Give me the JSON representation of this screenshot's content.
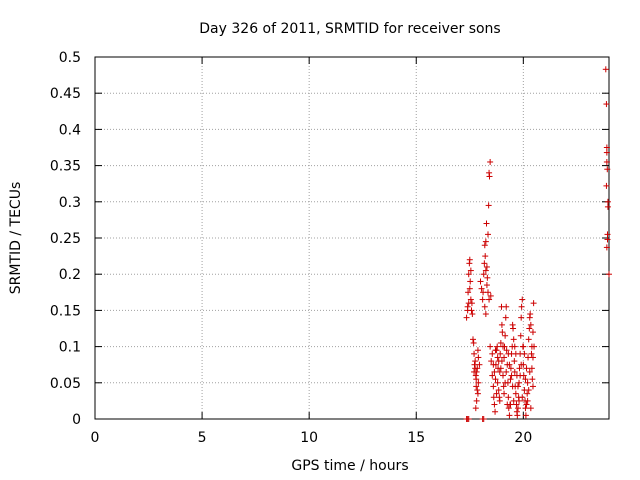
{
  "chart_data": {
    "type": "scatter",
    "title": "Day 326 of 2011, SRMTID for receiver sons",
    "xlabel": "GPS time / hours",
    "ylabel": "SRMTID / TECUs",
    "xlim": [
      0,
      24
    ],
    "ylim": [
      0,
      0.5
    ],
    "grid": true,
    "x_ticks": [
      0,
      5,
      10,
      15,
      20
    ],
    "y_ticks": [
      0,
      0.05,
      0.1,
      0.15,
      0.2,
      0.25,
      0.3,
      0.35,
      0.4,
      0.45,
      0.5
    ],
    "x_tick_labels": [
      "0",
      "5",
      "10",
      "15",
      "20"
    ],
    "y_tick_labels": [
      "0",
      "0.05",
      "0.1",
      "0.15",
      "0.2",
      "0.25",
      "0.3",
      "0.35",
      "0.4",
      "0.45",
      "0.5"
    ],
    "marker": "plus",
    "color": "#cc0000",
    "series": [
      {
        "name": "SRMTID",
        "points": [
          [
            17.35,
            0.0
          ],
          [
            17.4,
            0.0
          ],
          [
            17.45,
            0.0
          ],
          [
            18.1,
            0.0
          ],
          [
            18.15,
            0.0
          ],
          [
            17.35,
            0.14
          ],
          [
            17.4,
            0.155
          ],
          [
            17.42,
            0.175
          ],
          [
            17.45,
            0.2
          ],
          [
            17.48,
            0.215
          ],
          [
            17.5,
            0.22
          ],
          [
            17.52,
            0.19
          ],
          [
            17.55,
            0.165
          ],
          [
            17.58,
            0.15
          ],
          [
            17.6,
            0.16
          ],
          [
            17.62,
            0.145
          ],
          [
            17.4,
            0.15
          ],
          [
            17.45,
            0.16
          ],
          [
            17.5,
            0.18
          ],
          [
            17.55,
            0.205
          ],
          [
            17.65,
            0.11
          ],
          [
            17.68,
            0.105
          ],
          [
            17.7,
            0.09
          ],
          [
            17.72,
            0.075
          ],
          [
            17.75,
            0.07
          ],
          [
            17.78,
            0.06
          ],
          [
            17.8,
            0.055
          ],
          [
            17.82,
            0.065
          ],
          [
            17.85,
            0.04
          ],
          [
            17.88,
            0.035
          ],
          [
            17.9,
            0.05
          ],
          [
            17.7,
            0.065
          ],
          [
            17.75,
            0.08
          ],
          [
            17.8,
            0.045
          ],
          [
            17.85,
            0.07
          ],
          [
            17.9,
            0.085
          ],
          [
            17.95,
            0.075
          ],
          [
            17.78,
            0.015
          ],
          [
            17.82,
            0.025
          ],
          [
            17.88,
            0.095
          ],
          [
            18.0,
            0.19
          ],
          [
            18.05,
            0.18
          ],
          [
            18.1,
            0.165
          ],
          [
            18.12,
            0.175
          ],
          [
            18.15,
            0.2
          ],
          [
            18.18,
            0.215
          ],
          [
            18.2,
            0.24
          ],
          [
            18.22,
            0.225
          ],
          [
            18.25,
            0.245
          ],
          [
            18.28,
            0.27
          ],
          [
            18.3,
            0.21
          ],
          [
            18.32,
            0.195
          ],
          [
            18.35,
            0.255
          ],
          [
            18.38,
            0.295
          ],
          [
            18.4,
            0.34
          ],
          [
            18.42,
            0.335
          ],
          [
            18.45,
            0.355
          ],
          [
            18.25,
            0.205
          ],
          [
            18.3,
            0.185
          ],
          [
            18.35,
            0.175
          ],
          [
            18.4,
            0.165
          ],
          [
            18.2,
            0.155
          ],
          [
            18.25,
            0.145
          ],
          [
            18.48,
            0.17
          ],
          [
            18.45,
            0.1
          ],
          [
            18.5,
            0.08
          ],
          [
            18.55,
            0.06
          ],
          [
            18.6,
            0.045
          ],
          [
            18.62,
            0.03
          ],
          [
            18.65,
            0.02
          ],
          [
            18.68,
            0.01
          ],
          [
            18.7,
            0.055
          ],
          [
            18.72,
            0.075
          ],
          [
            18.75,
            0.095
          ],
          [
            18.78,
            0.1
          ],
          [
            18.8,
            0.085
          ],
          [
            18.82,
            0.07
          ],
          [
            18.85,
            0.04
          ],
          [
            18.88,
            0.03
          ],
          [
            18.9,
            0.065
          ],
          [
            18.92,
            0.09
          ],
          [
            18.95,
            0.105
          ],
          [
            18.98,
            0.155
          ],
          [
            19.0,
            0.13
          ],
          [
            19.02,
            0.12
          ],
          [
            19.05,
            0.06
          ],
          [
            19.08,
            0.045
          ],
          [
            19.1,
            0.085
          ],
          [
            19.12,
            0.1
          ],
          [
            19.15,
            0.115
          ],
          [
            19.18,
            0.14
          ],
          [
            19.2,
            0.155
          ],
          [
            19.22,
            0.095
          ],
          [
            19.25,
            0.075
          ],
          [
            19.28,
            0.05
          ],
          [
            19.3,
            0.03
          ],
          [
            19.32,
            0.015
          ],
          [
            19.35,
            0.005
          ],
          [
            19.38,
            0.02
          ],
          [
            19.4,
            0.055
          ],
          [
            19.42,
            0.07
          ],
          [
            19.45,
            0.09
          ],
          [
            19.48,
            0.1
          ],
          [
            19.5,
            0.13
          ],
          [
            19.52,
            0.125
          ],
          [
            19.55,
            0.11
          ],
          [
            19.58,
            0.08
          ],
          [
            19.6,
            0.065
          ],
          [
            19.62,
            0.045
          ],
          [
            19.65,
            0.035
          ],
          [
            19.68,
            0.02
          ],
          [
            19.7,
            0.01
          ],
          [
            19.72,
            0.005
          ],
          [
            19.75,
            0.015
          ],
          [
            19.78,
            0.03
          ],
          [
            19.8,
            0.05
          ],
          [
            19.82,
            0.07
          ],
          [
            19.85,
            0.09
          ],
          [
            19.88,
            0.115
          ],
          [
            19.9,
            0.14
          ],
          [
            19.92,
            0.155
          ],
          [
            19.95,
            0.165
          ],
          [
            19.98,
            0.1
          ],
          [
            20.0,
            0.075
          ],
          [
            20.02,
            0.06
          ],
          [
            20.05,
            0.04
          ],
          [
            20.08,
            0.025
          ],
          [
            20.1,
            0.015
          ],
          [
            20.12,
            0.005
          ],
          [
            20.15,
            0.02
          ],
          [
            20.18,
            0.035
          ],
          [
            20.2,
            0.05
          ],
          [
            20.22,
            0.085
          ],
          [
            20.25,
            0.11
          ],
          [
            20.28,
            0.125
          ],
          [
            20.3,
            0.14
          ],
          [
            20.32,
            0.145
          ],
          [
            20.35,
            0.13
          ],
          [
            20.38,
            0.09
          ],
          [
            20.4,
            0.07
          ],
          [
            20.42,
            0.055
          ],
          [
            20.45,
            0.045
          ],
          [
            20.48,
            0.16
          ],
          [
            20.5,
            0.1
          ],
          [
            18.6,
            0.075
          ],
          [
            18.7,
            0.095
          ],
          [
            18.8,
            0.05
          ],
          [
            18.9,
            0.025
          ],
          [
            19.0,
            0.08
          ],
          [
            19.1,
            0.035
          ],
          [
            19.2,
            0.065
          ],
          [
            19.3,
            0.09
          ],
          [
            19.4,
            0.02
          ],
          [
            19.5,
            0.045
          ],
          [
            19.6,
            0.1
          ],
          [
            19.7,
            0.06
          ],
          [
            19.8,
            0.025
          ],
          [
            19.9,
            0.075
          ],
          [
            20.0,
            0.1
          ],
          [
            20.1,
            0.055
          ],
          [
            20.2,
            0.025
          ],
          [
            20.3,
            0.065
          ],
          [
            20.4,
            0.1
          ],
          [
            20.45,
            0.12
          ],
          [
            18.55,
            0.09
          ],
          [
            18.65,
            0.065
          ],
          [
            18.75,
            0.035
          ],
          [
            18.85,
            0.08
          ],
          [
            18.95,
            0.07
          ],
          [
            19.05,
            0.1
          ],
          [
            19.15,
            0.05
          ],
          [
            19.25,
            0.02
          ],
          [
            19.35,
            0.075
          ],
          [
            19.45,
            0.06
          ],
          [
            19.55,
            0.025
          ],
          [
            19.65,
            0.09
          ],
          [
            19.75,
            0.045
          ],
          [
            19.85,
            0.06
          ],
          [
            19.95,
            0.03
          ],
          [
            20.05,
            0.09
          ],
          [
            20.15,
            0.07
          ],
          [
            20.25,
            0.04
          ],
          [
            20.35,
            0.015
          ],
          [
            20.45,
            0.085
          ],
          [
            23.85,
            0.483
          ],
          [
            23.88,
            0.435
          ],
          [
            23.9,
            0.375
          ],
          [
            23.9,
            0.368
          ],
          [
            23.9,
            0.355
          ],
          [
            23.92,
            0.345
          ],
          [
            23.88,
            0.322
          ],
          [
            23.95,
            0.3
          ],
          [
            23.95,
            0.293
          ],
          [
            23.93,
            0.255
          ],
          [
            23.93,
            0.248
          ],
          [
            23.9,
            0.237
          ],
          [
            24.0,
            0.2
          ]
        ]
      }
    ]
  }
}
